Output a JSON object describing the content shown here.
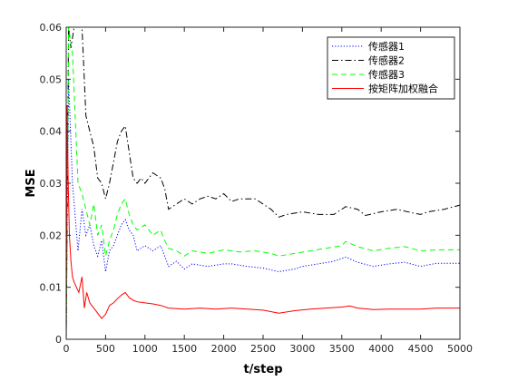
{
  "chart_data": {
    "type": "line",
    "title": "",
    "xlabel": "t/step",
    "ylabel": "MSE",
    "xlim": [
      0,
      5000
    ],
    "ylim": [
      0,
      0.06
    ],
    "xticks": [
      0,
      500,
      1000,
      1500,
      2000,
      2500,
      3000,
      3500,
      4000,
      4500,
      5000
    ],
    "yticks": [
      0,
      0.01,
      0.02,
      0.03,
      0.04,
      0.05,
      0.06
    ],
    "xtick_labels": [
      "0",
      "500",
      "1000",
      "1500",
      "2000",
      "2500",
      "3000",
      "3500",
      "4000",
      "4500",
      "5000"
    ],
    "ytick_labels": [
      "0",
      "0.01",
      "0.02",
      "0.03",
      "0.04",
      "0.05",
      "0.06"
    ],
    "grid": false,
    "legend_position": "top-right",
    "series": [
      {
        "name": "传感器1",
        "color": "#0000ff",
        "style": "dotted",
        "x": [
          0,
          30,
          80,
          150,
          200,
          250,
          300,
          350,
          400,
          450,
          500,
          550,
          600,
          650,
          700,
          750,
          800,
          850,
          900,
          1000,
          1100,
          1200,
          1250,
          1300,
          1400,
          1500,
          1600,
          1800,
          2000,
          2100,
          2300,
          2500,
          2700,
          2900,
          3000,
          3200,
          3400,
          3550,
          3700,
          3900,
          4100,
          4300,
          4500,
          4700,
          5000
        ],
        "y": [
          0.0,
          0.05,
          0.03,
          0.017,
          0.025,
          0.02,
          0.022,
          0.018,
          0.016,
          0.019,
          0.013,
          0.017,
          0.018,
          0.02,
          0.022,
          0.023,
          0.021,
          0.02,
          0.017,
          0.018,
          0.017,
          0.018,
          0.016,
          0.014,
          0.015,
          0.0135,
          0.0145,
          0.014,
          0.0145,
          0.0145,
          0.014,
          0.0137,
          0.013,
          0.0135,
          0.014,
          0.0145,
          0.015,
          0.0158,
          0.0148,
          0.014,
          0.0145,
          0.0148,
          0.014,
          0.0146,
          0.0146
        ]
      },
      {
        "name": "传感器2",
        "color": "#000000",
        "style": "dashdot",
        "x": [
          0,
          30,
          60,
          100,
          150,
          200,
          250,
          300,
          350,
          400,
          450,
          500,
          550,
          600,
          650,
          700,
          750,
          800,
          850,
          900,
          950,
          1000,
          1100,
          1200,
          1250,
          1300,
          1400,
          1500,
          1600,
          1700,
          1800,
          1900,
          2000,
          2100,
          2200,
          2400,
          2500,
          2600,
          2700,
          2800,
          3000,
          3200,
          3400,
          3550,
          3700,
          3800,
          4000,
          4200,
          4400,
          4500,
          4600,
          4800,
          5000
        ],
        "y": [
          0.0,
          0.06,
          0.056,
          0.06,
          0.06,
          0.06,
          0.043,
          0.04,
          0.037,
          0.031,
          0.03,
          0.027,
          0.03,
          0.034,
          0.038,
          0.04,
          0.041,
          0.036,
          0.031,
          0.03,
          0.031,
          0.03,
          0.032,
          0.031,
          0.029,
          0.025,
          0.026,
          0.027,
          0.026,
          0.027,
          0.0275,
          0.027,
          0.028,
          0.0265,
          0.027,
          0.027,
          0.026,
          0.025,
          0.0235,
          0.024,
          0.0245,
          0.024,
          0.024,
          0.0255,
          0.025,
          0.0238,
          0.0245,
          0.025,
          0.0243,
          0.024,
          0.0245,
          0.025,
          0.0258
        ]
      },
      {
        "name": "传感器3",
        "color": "#00ff00",
        "style": "dashed",
        "x": [
          0,
          30,
          80,
          150,
          200,
          250,
          300,
          350,
          400,
          450,
          500,
          550,
          600,
          650,
          700,
          750,
          800,
          850,
          900,
          1000,
          1100,
          1200,
          1250,
          1300,
          1400,
          1500,
          1600,
          1800,
          2000,
          2200,
          2400,
          2600,
          2700,
          2900,
          3100,
          3300,
          3500,
          3550,
          3700,
          3900,
          4100,
          4300,
          4500,
          4700,
          5000
        ],
        "y": [
          0.0,
          0.06,
          0.055,
          0.03,
          0.028,
          0.025,
          0.022,
          0.026,
          0.02,
          0.022,
          0.016,
          0.019,
          0.021,
          0.024,
          0.026,
          0.027,
          0.024,
          0.022,
          0.021,
          0.022,
          0.02,
          0.021,
          0.019,
          0.0175,
          0.017,
          0.016,
          0.017,
          0.0165,
          0.0172,
          0.0168,
          0.017,
          0.0165,
          0.016,
          0.0165,
          0.017,
          0.0175,
          0.018,
          0.0188,
          0.0178,
          0.017,
          0.0175,
          0.0178,
          0.017,
          0.0172,
          0.0172
        ]
      },
      {
        "name": "按矩阵加权融合",
        "color": "#ff0000",
        "style": "solid",
        "x": [
          0,
          10,
          25,
          40,
          60,
          80,
          100,
          130,
          160,
          200,
          230,
          260,
          300,
          350,
          400,
          450,
          500,
          550,
          600,
          650,
          700,
          750,
          800,
          850,
          900,
          1000,
          1100,
          1200,
          1300,
          1500,
          1700,
          1900,
          2100,
          2300,
          2500,
          2700,
          2900,
          3100,
          3300,
          3500,
          3600,
          3700,
          3900,
          4100,
          4300,
          4500,
          4700,
          5000
        ],
        "y": [
          0.0,
          0.045,
          0.03,
          0.02,
          0.015,
          0.012,
          0.011,
          0.01,
          0.009,
          0.012,
          0.006,
          0.009,
          0.007,
          0.006,
          0.005,
          0.004,
          0.0048,
          0.0065,
          0.007,
          0.0078,
          0.0085,
          0.009,
          0.008,
          0.0075,
          0.0072,
          0.007,
          0.0068,
          0.0065,
          0.006,
          0.0058,
          0.006,
          0.0058,
          0.006,
          0.0058,
          0.0056,
          0.005,
          0.0055,
          0.0058,
          0.006,
          0.0062,
          0.0064,
          0.006,
          0.0057,
          0.0058,
          0.0058,
          0.0058,
          0.006,
          0.006
        ]
      }
    ]
  }
}
